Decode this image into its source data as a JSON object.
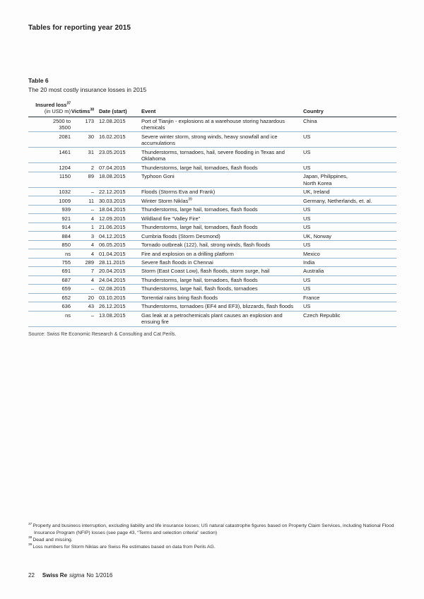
{
  "page": {
    "title": "Tables for reporting year 2015",
    "footer": {
      "page_number": "22",
      "brand": "Swiss Re",
      "journal": "sigma",
      "issue": "No 1/2016"
    }
  },
  "table": {
    "label": "Table 6",
    "subtitle": "The 20 most costly insurance losses in 2015",
    "header": {
      "loss_line1": "Insured loss",
      "loss_sup": "37",
      "loss_line2": "(in USD m)",
      "victims": "Victims",
      "victims_sup": "38",
      "date": "Date (start)",
      "event": "Event",
      "country": "Country"
    },
    "rows": [
      {
        "loss": "2500 to\n3500",
        "victims": "173",
        "date": "12.08.2015",
        "event": "Port of Tianjin - explosions at a warehouse storing hazardous\nchemicals",
        "country": "China"
      },
      {
        "loss": "2081",
        "victims": "30",
        "date": "16.02.2015",
        "event": "Severe winter storm, strong winds, heavy snowfall and ice\naccumulations",
        "country": "US"
      },
      {
        "loss": "1461",
        "victims": "31",
        "date": "23.05.2015",
        "event": "Thunderstorms, tornadoes, hail, severe flooding in Texas and\nOklahoma",
        "country": "US"
      },
      {
        "loss": "1204",
        "victims": "2",
        "date": "07.04.2015",
        "event": "Thunderstorms, large hail, tornadoes, flash floods",
        "country": "US"
      },
      {
        "loss": "1150",
        "victims": "89",
        "date": "18.08.2015",
        "event": "Typhoon Goni",
        "country": "Japan, Philippines,\nNorth Korea"
      },
      {
        "loss": "1032",
        "victims": "–",
        "date": "22.12.2015",
        "event": "Floods (Storms Eva and Frank)",
        "country": "UK, Ireland"
      },
      {
        "loss": "1009",
        "victims": "11",
        "date": "30.03.2015",
        "event": "Winter Storm Niklas",
        "event_sup": "39",
        "country": "Germany, Netherlands, et. al."
      },
      {
        "loss": "939",
        "victims": "–",
        "date": "18.04.2015",
        "event": "Thunderstorms, large hail, tornadoes, flash floods",
        "country": "US"
      },
      {
        "loss": "921",
        "victims": "4",
        "date": "12.09.2015",
        "event": "Wildland fire “Valley Fire”",
        "country": "US"
      },
      {
        "loss": "914",
        "victims": "1",
        "date": "21.06.2015",
        "event": "Thunderstorms, large hail, tornadoes, flash floods",
        "country": "US"
      },
      {
        "loss": "884",
        "victims": "3",
        "date": "04.12.2015",
        "event": "Cumbria floods (Storm Desmond)",
        "country": "UK, Norway"
      },
      {
        "loss": "850",
        "victims": "4",
        "date": "06.05.2015",
        "event": "Tornado outbreak (122), hail, strong winds, flash floods",
        "country": "US"
      },
      {
        "loss": "ns",
        "victims": "4",
        "date": "01.04.2015",
        "event": "Fire and explosion on a drilling platform",
        "country": "Mexico"
      },
      {
        "loss": "755",
        "victims": "289",
        "date": "28.11.2015",
        "event": "Severe flash floods in Chennai",
        "country": "India"
      },
      {
        "loss": "691",
        "victims": "7",
        "date": "20.04.2015",
        "event": "Storm (East Coast Low), flash floods, storm surge, hail",
        "country": "Australia"
      },
      {
        "loss": "687",
        "victims": "4",
        "date": "24.04.2015",
        "event": "Thunderstorms, large hail, tornadoes, flash floods",
        "country": "US"
      },
      {
        "loss": "659",
        "victims": "–",
        "date": "02.08.2015",
        "event": "Thunderstorms, large hail, flash floods, tornadoes",
        "country": "US"
      },
      {
        "loss": "652",
        "victims": "20",
        "date": "03.10.2015",
        "event": "Torrential rains bring flash floods",
        "country": "France"
      },
      {
        "loss": "636",
        "victims": "43",
        "date": "26.12.2015",
        "event": "Thunderstorms, tornadoes (EF4 and EF3), blizzards, flash floods",
        "country": "US"
      },
      {
        "loss": "ns",
        "victims": "–",
        "date": "13.08.2015",
        "event": "Gas leak at a petrochemicals plant causes an explosion and\nensuing fire",
        "country": "Czech Republic"
      }
    ],
    "source": "Source: Swiss Re Economic Research & Consulting and Cat Perils."
  },
  "footnotes": [
    {
      "sup": "37",
      "text": "Property and business interruption, excluding liability and life insurance losses; US natural catastrophe figures based on Property Claim Services, including National Flood Insurance Program (NFIP) losses (see page 43, “Terms and selection criteria” section)"
    },
    {
      "sup": "38",
      "text": "Dead and missing."
    },
    {
      "sup": "39",
      "text": "Loss numbers for Storm Niklas are Swiss Re estimates based on data from Perils AG."
    }
  ],
  "colors": {
    "rule_dark": "#232d36",
    "rule_light": "#9db5c8",
    "text": "#1c1c1c"
  }
}
